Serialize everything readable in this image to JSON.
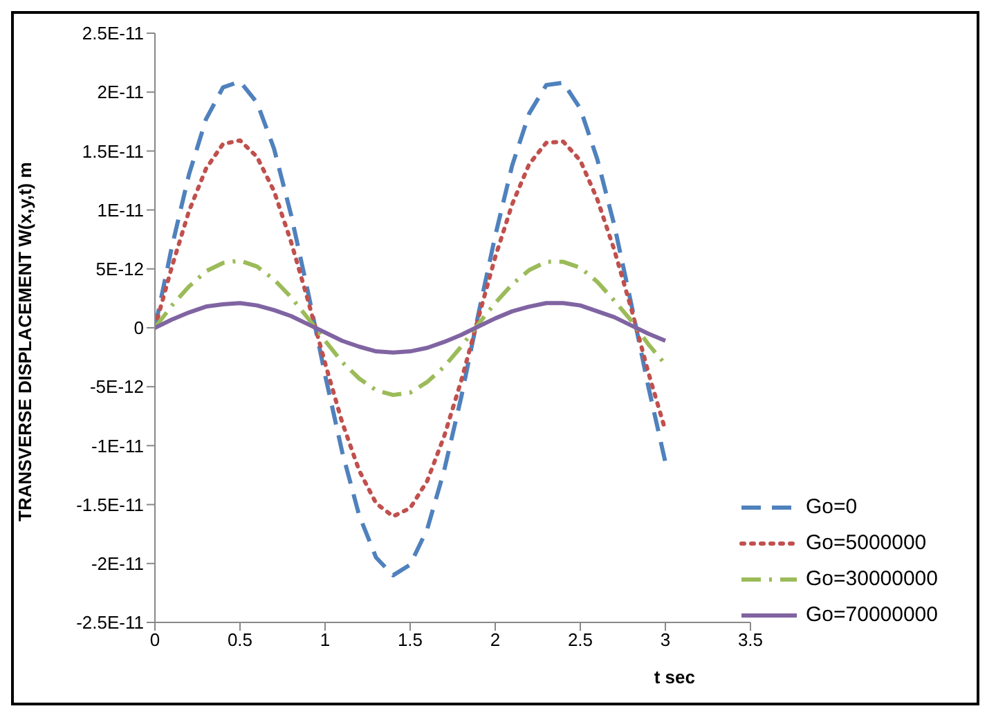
{
  "chart_data": {
    "type": "line",
    "xlabel": "t sec",
    "ylabel": "TRANSVERSE  DISPLACEMENT  W(x,y,t)  m",
    "x": [
      0,
      0.1,
      0.2,
      0.3,
      0.4,
      0.5,
      0.6,
      0.7,
      0.8,
      0.9,
      1.0,
      1.1,
      1.2,
      1.3,
      1.4,
      1.5,
      1.6,
      1.7,
      1.8,
      1.9,
      2.0,
      2.1,
      2.2,
      2.3,
      2.4,
      2.5,
      2.6,
      2.7,
      2.8,
      2.9,
      3.0
    ],
    "series": [
      {
        "name": "Go=0",
        "color": "#4f81bd",
        "line_style": "dashed",
        "values": [
          0,
          6.9e-12,
          1.3e-11,
          1.77e-11,
          2.04e-11,
          2.09e-11,
          1.91e-11,
          1.52e-11,
          9.6e-12,
          3e-12,
          -4e-12,
          -1.05e-11,
          -1.59e-11,
          -1.95e-11,
          -2.1e-11,
          -2.01e-11,
          -1.71e-11,
          -1.21e-11,
          -5.9e-12,
          1.1e-12,
          7.8e-12,
          1.38e-11,
          1.82e-11,
          2.06e-11,
          2.08e-11,
          1.86e-11,
          1.43e-11,
          8.7e-12,
          2e-12,
          -5e-12,
          -1.14e-11
        ]
      },
      {
        "name": "Go=5000000",
        "color": "#c0504d",
        "line_style": "dotted",
        "values": [
          0,
          5.2e-12,
          9.9e-12,
          1.35e-11,
          1.56e-11,
          1.59e-11,
          1.45e-11,
          1.16e-11,
          7.3e-12,
          2.3e-12,
          -3e-12,
          -8e-12,
          -1.21e-11,
          -1.49e-11,
          -1.6e-11,
          -1.53e-11,
          -1.3e-11,
          -9.2e-12,
          -4.5e-12,
          8e-13,
          6e-12,
          1.05e-11,
          1.39e-11,
          1.57e-11,
          1.58e-11,
          1.42e-11,
          1.09e-11,
          6.6e-12,
          1.6e-12,
          -3.8e-12,
          -8.7e-12
        ]
      },
      {
        "name": "Go=30000000",
        "color": "#9bbb59",
        "line_style": "dashdot",
        "values": [
          0,
          1.9e-12,
          3.5e-12,
          4.8e-12,
          5.5e-12,
          5.7e-12,
          5.2e-12,
          4.1e-12,
          2.6e-12,
          8e-13,
          -1.1e-12,
          -2.9e-12,
          -4.3e-12,
          -5.3e-12,
          -5.7e-12,
          -5.5e-12,
          -4.6e-12,
          -3.3e-12,
          -1.6e-12,
          3e-13,
          2.1e-12,
          3.7e-12,
          4.9e-12,
          5.6e-12,
          5.6e-12,
          5.1e-12,
          3.9e-12,
          2.3e-12,
          6e-13,
          -1.4e-12,
          -3.1e-12
        ]
      },
      {
        "name": "Go=70000000",
        "color": "#8064a2",
        "line_style": "solid",
        "values": [
          0,
          7e-13,
          1.3e-12,
          1.8e-12,
          2e-12,
          2.1e-12,
          1.9e-12,
          1.5e-12,
          1e-12,
          3e-13,
          -4e-13,
          -1.1e-12,
          -1.6e-12,
          -2e-12,
          -2.1e-12,
          -2e-12,
          -1.7e-12,
          -1.2e-12,
          -6e-13,
          1e-13,
          8e-13,
          1.4e-12,
          1.8e-12,
          2.1e-12,
          2.1e-12,
          1.9e-12,
          1.4e-12,
          9e-13,
          2e-13,
          -5e-13,
          -1.1e-12
        ]
      }
    ],
    "xlim": [
      0,
      3.5
    ],
    "xticks": [
      0,
      0.5,
      1,
      1.5,
      2,
      2.5,
      3,
      3.5
    ],
    "ylim": [
      -2.5e-11,
      2.5e-11
    ],
    "yticks": [
      {
        "value": -2.5e-11,
        "label": "-2.5E-11"
      },
      {
        "value": -2e-11,
        "label": "-2E-11"
      },
      {
        "value": -1.5e-11,
        "label": "-1.5E-11"
      },
      {
        "value": -1e-11,
        "label": "-1E-11"
      },
      {
        "value": -5e-12,
        "label": "-5E-12"
      },
      0,
      {
        "value": 5e-12,
        "label": "5E-12"
      },
      {
        "value": 1e-11,
        "label": "1E-11"
      },
      {
        "value": 1.5e-11,
        "label": "1.5E-11"
      },
      {
        "value": 2e-11,
        "label": "2E-11"
      },
      {
        "value": 2.5e-11,
        "label": "2.5E-11"
      }
    ],
    "grid": false,
    "legend": "bottom right",
    "marker": "none"
  }
}
